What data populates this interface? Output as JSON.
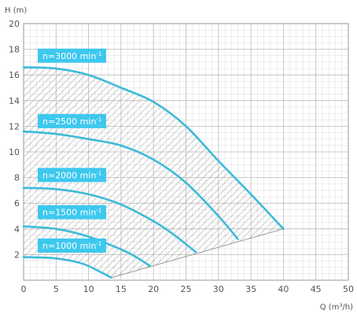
{
  "chart_data": {
    "type": "line",
    "title": "",
    "xlabel": "Q (m³/h)",
    "ylabel": "H (m)",
    "xlim": [
      0,
      50
    ],
    "ylim": [
      0,
      20
    ],
    "x_ticks": [
      0,
      5,
      10,
      15,
      20,
      25,
      30,
      35,
      40,
      45,
      50
    ],
    "y_ticks": [
      2,
      4,
      6,
      8,
      10,
      12,
      14,
      16,
      18,
      20
    ],
    "grid": true,
    "minor_grid": true,
    "legend": "none",
    "colors": {
      "curve": "#3dbbd9",
      "label_bg": "#3ec8ee",
      "grid_major": "#bbbbbb",
      "grid_minor": "#dddddd",
      "hatch": "#888888",
      "boundary": "#999999"
    },
    "series": [
      {
        "name": "n=3000 min⁻¹",
        "label": "n=3000 min",
        "sup": "-1",
        "x": [
          0,
          5,
          10,
          15,
          20,
          25,
          30,
          35,
          40
        ],
        "y": [
          16.6,
          16.5,
          16.0,
          15.0,
          13.9,
          12.0,
          9.3,
          6.7,
          4.0
        ]
      },
      {
        "name": "n=2500 min⁻¹",
        "label": "n=2500 min",
        "sup": "-1",
        "x": [
          0,
          5,
          10,
          15,
          20,
          25,
          30,
          33
        ],
        "y": [
          11.6,
          11.4,
          11.0,
          10.5,
          9.4,
          7.6,
          5.0,
          3.2
        ]
      },
      {
        "name": "n=2000 min⁻¹",
        "label": "n=2000 min",
        "sup": "-1",
        "x": [
          0,
          5,
          10,
          15,
          20,
          23,
          26.5
        ],
        "y": [
          7.2,
          7.1,
          6.7,
          5.9,
          4.6,
          3.6,
          2.2
        ]
      },
      {
        "name": "n=1500 min⁻¹",
        "label": "n=1500 min",
        "sup": "-1",
        "x": [
          0,
          5,
          10,
          15,
          17,
          19.5
        ],
        "y": [
          4.2,
          4.0,
          3.4,
          2.4,
          1.9,
          1.1
        ]
      },
      {
        "name": "n=1000 min⁻¹",
        "label": "n=1000 min",
        "sup": "-1",
        "x": [
          0,
          5,
          9,
          12,
          13.5
        ],
        "y": [
          1.8,
          1.7,
          1.3,
          0.6,
          0.2
        ]
      }
    ],
    "operating_limit": {
      "x": [
        13.5,
        40
      ],
      "y": [
        0.2,
        4.0
      ]
    }
  }
}
